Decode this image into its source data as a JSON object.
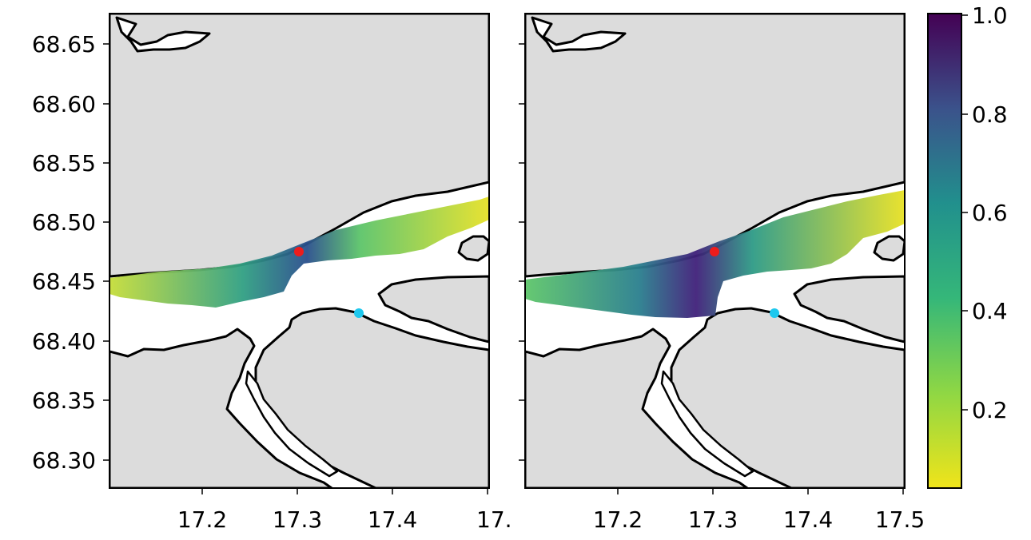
{
  "colors": {
    "land": "#dcdcdc",
    "water": "#ffffff",
    "coast": "#000000",
    "red_marker": "#ee1c1c",
    "cyan_marker": "#1ec8ee"
  },
  "lat_ticks": [
    "68.65",
    "68.60",
    "68.55",
    "68.50",
    "68.45",
    "68.40",
    "68.35",
    "68.30"
  ],
  "left_lon_ticks": [
    "17.2",
    "17.3",
    "17.4",
    "17."
  ],
  "right_lon_ticks": [
    "17.2",
    "17.3",
    "17.4",
    "17.5"
  ],
  "colorbar": {
    "ticks": [
      "1.0",
      "0.8",
      "0.6",
      "0.4",
      "0.2"
    ],
    "colormap": "viridis (reversed: yellow low, dark purple high)"
  },
  "markers": [
    {
      "name": "red-site",
      "lon": 17.305,
      "lat": 68.475,
      "color": "red"
    },
    {
      "name": "cyan-site",
      "lon": 17.368,
      "lat": 68.423,
      "color": "cyan"
    }
  ]
}
